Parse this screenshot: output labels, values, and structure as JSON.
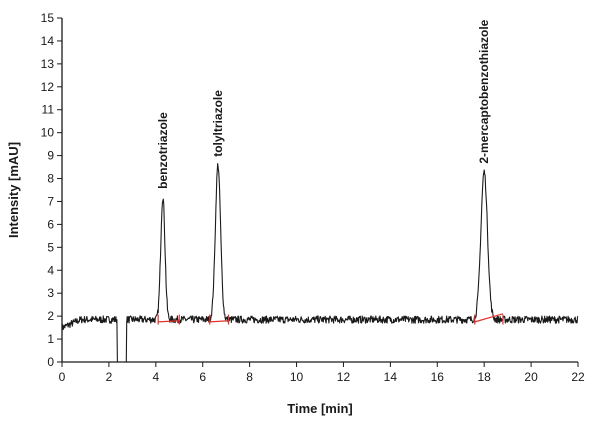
{
  "chart_data": {
    "type": "line",
    "title": "",
    "xlabel": "Time [min]",
    "ylabel": "Intensity [mAU]",
    "xlim": [
      0,
      22
    ],
    "ylim": [
      0,
      15
    ],
    "x_ticks": [
      0,
      2,
      4,
      6,
      8,
      10,
      12,
      14,
      16,
      18,
      20,
      22
    ],
    "y_ticks": [
      0,
      1,
      2,
      3,
      4,
      5,
      6,
      7,
      8,
      9,
      10,
      11,
      12,
      13,
      14,
      15
    ],
    "grid": false,
    "line_color": "#1a1a1a",
    "baseline_color": "#e0322b",
    "baseline_level": 1.85,
    "dip": {
      "start": 2.35,
      "end": 2.75,
      "min": 0
    },
    "peaks": [
      {
        "label": "benzotriazole",
        "time": 4.3,
        "height": 7.2,
        "width": 0.09,
        "integration": [
          4.1,
          5.0
        ]
      },
      {
        "label": "tolyltriazole",
        "time": 6.65,
        "height": 8.6,
        "width": 0.11,
        "integration": [
          6.3,
          7.1
        ]
      },
      {
        "label": "2-mercaptobenzothiazole",
        "time": 18.0,
        "height": 8.3,
        "width": 0.14,
        "integration": [
          17.6,
          18.8
        ]
      }
    ]
  }
}
